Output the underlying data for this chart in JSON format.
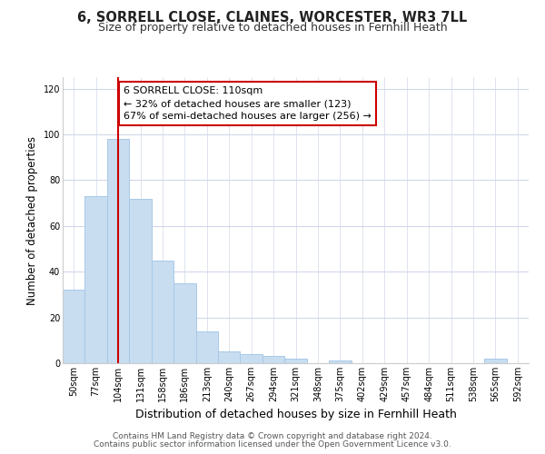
{
  "title": "6, SORRELL CLOSE, CLAINES, WORCESTER, WR3 7LL",
  "subtitle": "Size of property relative to detached houses in Fernhill Heath",
  "xlabel": "Distribution of detached houses by size in Fernhill Heath",
  "ylabel": "Number of detached properties",
  "bar_labels": [
    "50sqm",
    "77sqm",
    "104sqm",
    "131sqm",
    "158sqm",
    "186sqm",
    "213sqm",
    "240sqm",
    "267sqm",
    "294sqm",
    "321sqm",
    "348sqm",
    "375sqm",
    "402sqm",
    "429sqm",
    "457sqm",
    "484sqm",
    "511sqm",
    "538sqm",
    "565sqm",
    "592sqm"
  ],
  "bar_values": [
    32,
    73,
    98,
    72,
    45,
    35,
    14,
    5,
    4,
    3,
    2,
    0,
    1,
    0,
    0,
    0,
    0,
    0,
    0,
    2,
    0
  ],
  "bar_color": "#c8ddf0",
  "bar_edge_color": "#a8c8e8",
  "vline_x": 2,
  "vline_color": "#cc0000",
  "annotation_text": "6 SORRELL CLOSE: 110sqm\n← 32% of detached houses are smaller (123)\n67% of semi-detached houses are larger (256) →",
  "annotation_box_color": "#ffffff",
  "annotation_box_edge": "#cc0000",
  "ylim": [
    0,
    125
  ],
  "yticks": [
    0,
    20,
    40,
    60,
    80,
    100,
    120
  ],
  "footer1": "Contains HM Land Registry data © Crown copyright and database right 2024.",
  "footer2": "Contains public sector information licensed under the Open Government Licence v3.0.",
  "background_color": "#ffffff",
  "grid_color": "#d0d8e8",
  "title_fontsize": 10.5,
  "subtitle_fontsize": 9,
  "ylabel_fontsize": 8.5,
  "xlabel_fontsize": 9,
  "tick_fontsize": 7,
  "annotation_fontsize": 8,
  "footer_fontsize": 6.5
}
